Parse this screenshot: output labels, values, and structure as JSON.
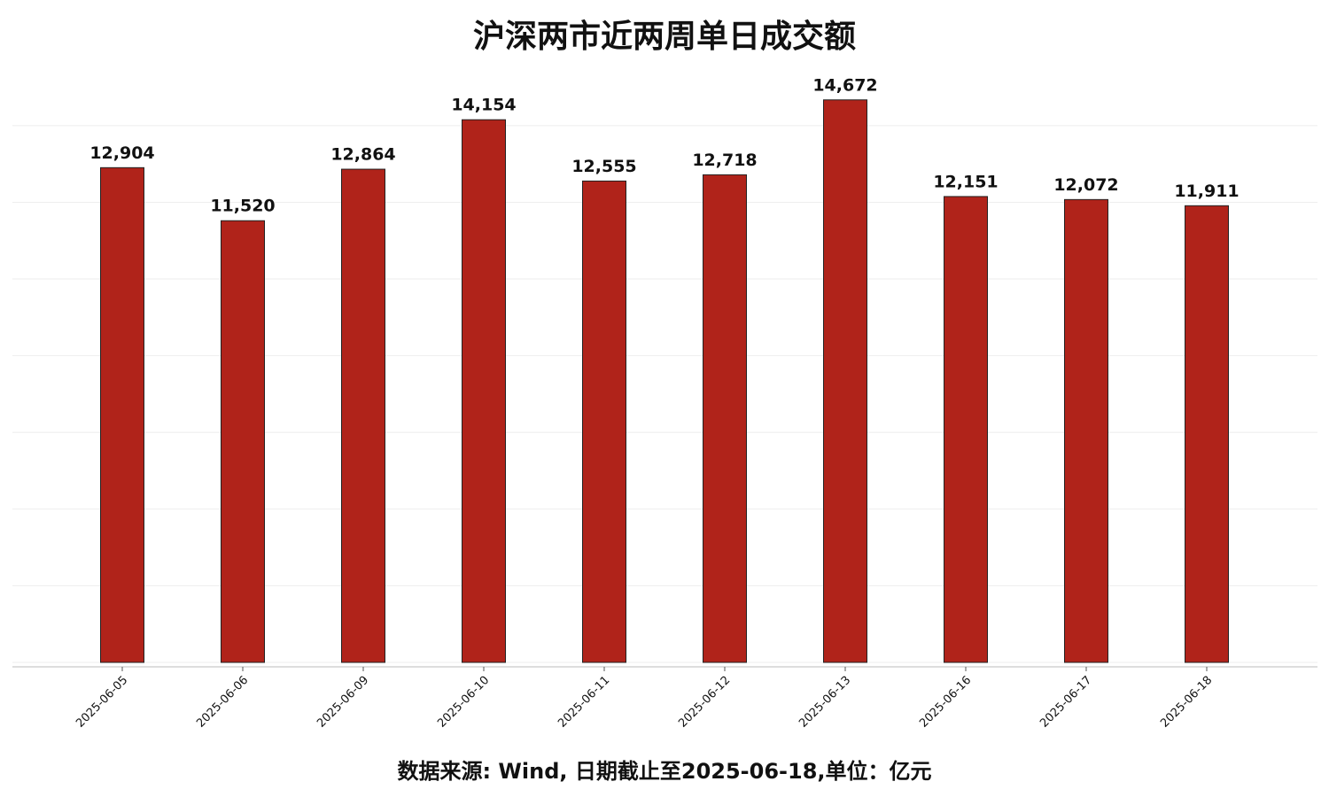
{
  "chart_data": {
    "type": "bar",
    "title": "沪深两市近两周单日成交额",
    "categories": [
      "2025-06-05",
      "2025-06-06",
      "2025-06-09",
      "2025-06-10",
      "2025-06-11",
      "2025-06-12",
      "2025-06-13",
      "2025-06-16",
      "2025-06-17",
      "2025-06-18"
    ],
    "values": [
      12904,
      11520,
      12864,
      14154,
      12555,
      12718,
      14672,
      12151,
      12072,
      11911
    ],
    "value_labels": [
      "12,904",
      "11,520",
      "12,864",
      "14,154",
      "12,555",
      "12,718",
      "14,672",
      "12,151",
      "12,072",
      "11,911"
    ],
    "color": "#b0231a",
    "ylim": [
      0,
      15406
    ],
    "yticks": [
      0,
      2000,
      4000,
      6000,
      8000,
      10000,
      12000,
      14000
    ],
    "grid": true,
    "note": "数据来源: Wind, 日期截止至2025-06-18,单位：亿元"
  }
}
